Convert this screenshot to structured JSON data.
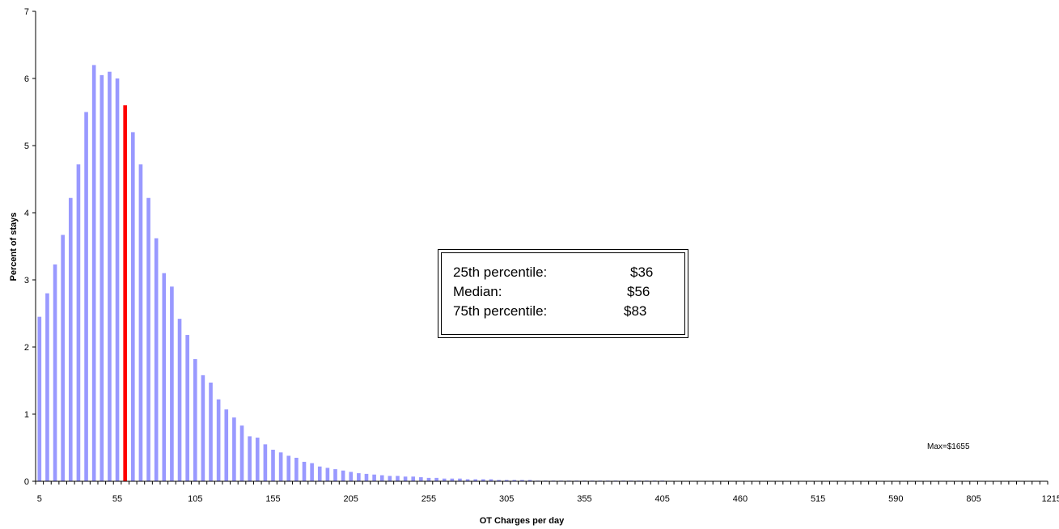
{
  "chart_data": {
    "type": "bar",
    "xlabel": "OT Charges per day",
    "ylabel": "Percent of stays",
    "ylim": [
      0,
      7
    ],
    "yticks": [
      "0",
      "1",
      "2",
      "3",
      "4",
      "5",
      "6",
      "7"
    ],
    "xtick_labels": [
      "5",
      "55",
      "105",
      "155",
      "205",
      "255",
      "305",
      "355",
      "405",
      "460",
      "515",
      "590",
      "805",
      "1215"
    ],
    "values": [
      2.45,
      2.8,
      3.23,
      3.67,
      4.22,
      4.72,
      5.5,
      6.2,
      6.05,
      6.1,
      6.0,
      5.6,
      5.2,
      4.72,
      4.22,
      3.62,
      3.1,
      2.9,
      2.42,
      2.18,
      1.82,
      1.58,
      1.47,
      1.22,
      1.07,
      0.95,
      0.83,
      0.67,
      0.65,
      0.55,
      0.47,
      0.43,
      0.38,
      0.35,
      0.29,
      0.27,
      0.22,
      0.2,
      0.18,
      0.16,
      0.14,
      0.12,
      0.11,
      0.1,
      0.09,
      0.08,
      0.08,
      0.07,
      0.07,
      0.06,
      0.05,
      0.05,
      0.04,
      0.04,
      0.04,
      0.03,
      0.03,
      0.03,
      0.03,
      0.02,
      0.02,
      0.02,
      0.02,
      0.02,
      0.01,
      0.01,
      0.01,
      0.01,
      0.01,
      0.01,
      0.01,
      0.01,
      0.01,
      0.01,
      0.01,
      0.01,
      0.01,
      0.01,
      0.01,
      0.01,
      0.01,
      0.005,
      0.005,
      0.005,
      0.005,
      0.005,
      0.005,
      0.005,
      0.005,
      0.005,
      0.005,
      0.005,
      0.005,
      0.005,
      0.005,
      0.005,
      0.005,
      0.005,
      0.005,
      0.005,
      0.005,
      0.005,
      0.005,
      0.005,
      0.005,
      0.005,
      0.005,
      0.005,
      0.005,
      0.005,
      0.005,
      0.005,
      0.005,
      0.005,
      0.005,
      0.005,
      0.005,
      0.005,
      0.005,
      0.005,
      0.005,
      0.005,
      0.005,
      0.005,
      0.005,
      0.005,
      0.005,
      0.005,
      0.005,
      0.005
    ],
    "highlight_index": 11,
    "bar_color": "#9999ff",
    "highlight_color": "#ff0000",
    "grid": false,
    "legend": "none",
    "annotation": "Max=$1655"
  },
  "stats": {
    "rows": [
      {
        "label": "25th percentile:",
        "value": "$36"
      },
      {
        "label": "Median:",
        "value": "$56"
      },
      {
        "label": "75th percentile:",
        "value": "$83"
      }
    ]
  }
}
